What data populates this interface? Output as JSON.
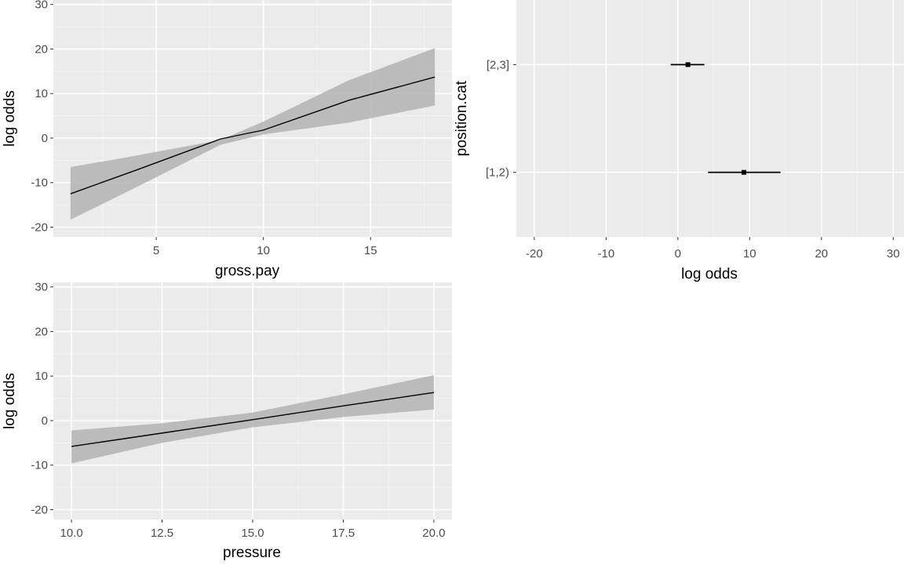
{
  "colors": {
    "panel_background": "#ebebeb",
    "grid_major": "#ffffff",
    "grid_minor": "#f5f5f5",
    "ribbon": "#b3b3b3",
    "line": "#000000",
    "tick_label": "#4d4d4d"
  },
  "chart_data": [
    {
      "type": "line",
      "title": "",
      "xlabel": "gross.pay",
      "ylabel": "log odds",
      "xlim": [
        0.2,
        18.8
      ],
      "ylim": [
        -22.2,
        31
      ],
      "x_ticks": [
        5,
        10,
        15
      ],
      "x_tick_labels": [
        "5",
        "10",
        "15"
      ],
      "y_ticks": [
        -20,
        -10,
        0,
        10,
        20,
        30
      ],
      "y_tick_labels": [
        "-20",
        "-10",
        "0",
        "10",
        "20",
        "30"
      ],
      "grid": true,
      "series": [
        {
          "x": [
            1,
            4,
            8,
            10,
            14,
            18
          ],
          "y": [
            -12.5,
            -7.3,
            -0.2,
            1.8,
            8.5,
            13.7
          ],
          "lower": [
            -18.3,
            -11.2,
            -1.5,
            0.8,
            3.5,
            7.3
          ],
          "upper": [
            -6.5,
            -4.0,
            -0.4,
            3.7,
            13.0,
            20.2
          ]
        }
      ]
    },
    {
      "type": "pointrange",
      "title": "",
      "xlabel": "log odds",
      "ylabel": "position.cat",
      "xlim": [
        -22.5,
        31.5
      ],
      "categories": [
        "[1,2)",
        "[2,3]"
      ],
      "x_ticks": [
        -20,
        -10,
        0,
        10,
        20,
        30
      ],
      "x_tick_labels": [
        "-20",
        "-10",
        "0",
        "10",
        "20",
        "30"
      ],
      "grid": true,
      "points": [
        {
          "category": "[2,3]",
          "estimate": 1.4,
          "lower": -1.0,
          "upper": 3.7
        },
        {
          "category": "[1,2)",
          "estimate": 9.2,
          "lower": 4.2,
          "upper": 14.3
        }
      ]
    },
    {
      "type": "line",
      "title": "",
      "xlabel": "pressure",
      "ylabel": "log odds",
      "xlim": [
        9.5,
        20.5
      ],
      "ylim": [
        -22.2,
        31
      ],
      "x_ticks": [
        10,
        12.5,
        15,
        17.5,
        20
      ],
      "x_tick_labels": [
        "10.0",
        "12.5",
        "15.0",
        "17.5",
        "20.0"
      ],
      "y_ticks": [
        -20,
        -10,
        0,
        10,
        20,
        30
      ],
      "y_tick_labels": [
        "-20",
        "-10",
        "0",
        "10",
        "20",
        "30"
      ],
      "grid": true,
      "series": [
        {
          "x": [
            10,
            12.5,
            15,
            17.5,
            20
          ],
          "y": [
            -5.8,
            -2.8,
            0.2,
            3.3,
            6.3
          ],
          "lower": [
            -9.6,
            -5.0,
            -1.5,
            0.8,
            2.5
          ],
          "upper": [
            -2.2,
            -0.6,
            1.8,
            5.9,
            10.2
          ]
        }
      ]
    }
  ]
}
